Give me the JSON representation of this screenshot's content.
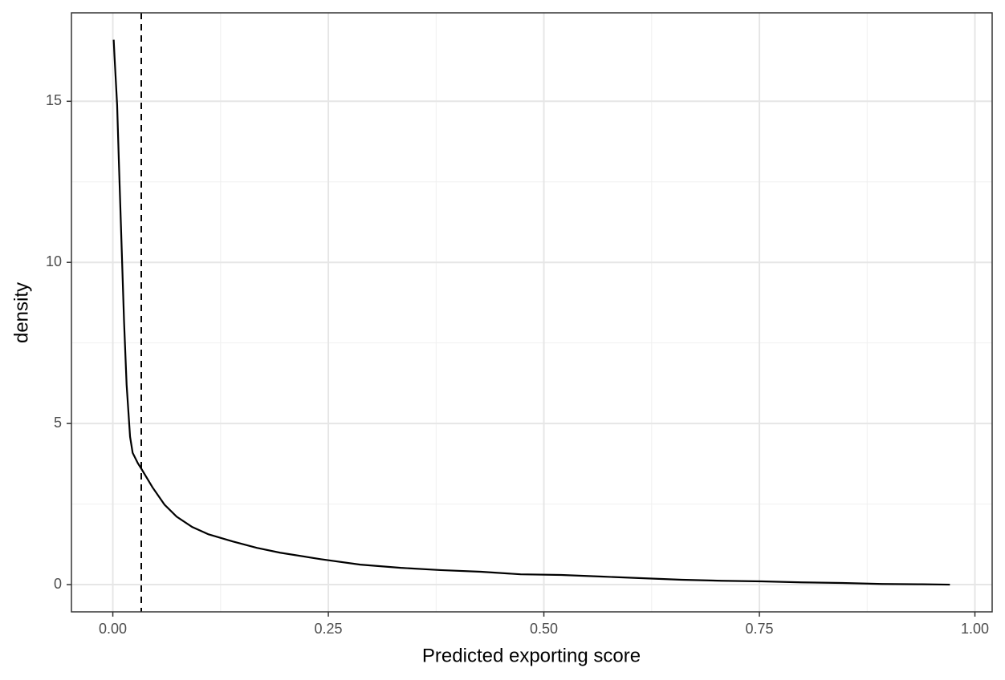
{
  "chart_data": {
    "type": "line",
    "x_label": "Predicted exporting score",
    "y_label": "density",
    "x": [
      0.001,
      0.002,
      0.005,
      0.007,
      0.01,
      0.013,
      0.016,
      0.02,
      0.023,
      0.029,
      0.033,
      0.046,
      0.06,
      0.074,
      0.092,
      0.111,
      0.139,
      0.167,
      0.194,
      0.241,
      0.287,
      0.334,
      0.38,
      0.427,
      0.473,
      0.52,
      0.567,
      0.613,
      0.66,
      0.706,
      0.753,
      0.799,
      0.846,
      0.892,
      0.939,
      0.971
    ],
    "values": [
      16.91,
      16.37,
      14.88,
      13.14,
      10.66,
      8.18,
      6.2,
      4.59,
      4.09,
      3.77,
      3.6,
      3.02,
      2.48,
      2.11,
      1.79,
      1.56,
      1.34,
      1.14,
      0.99,
      0.79,
      0.62,
      0.52,
      0.45,
      0.4,
      0.32,
      0.3,
      0.25,
      0.2,
      0.15,
      0.12,
      0.1,
      0.07,
      0.05,
      0.02,
      0.01,
      0.0
    ],
    "color": "#000000",
    "reference_line": 0.033,
    "xlim": [
      -0.048,
      1.02
    ],
    "ylim": [
      -0.845,
      17.745
    ],
    "xticks": [
      {
        "value": 0,
        "label": "0.00"
      },
      {
        "value": 0.25,
        "label": "0.25"
      },
      {
        "value": 0.5,
        "label": "0.50"
      },
      {
        "value": 0.75,
        "label": "0.75"
      },
      {
        "value": 1,
        "label": "1.00"
      }
    ],
    "yticks": [
      0,
      5,
      10,
      15
    ],
    "x_minor_ticks": [
      0.125,
      0.375,
      0.625,
      0.875
    ],
    "y_minor_ticks": [
      2.5,
      7.5,
      12.5
    ],
    "grid": true
  }
}
